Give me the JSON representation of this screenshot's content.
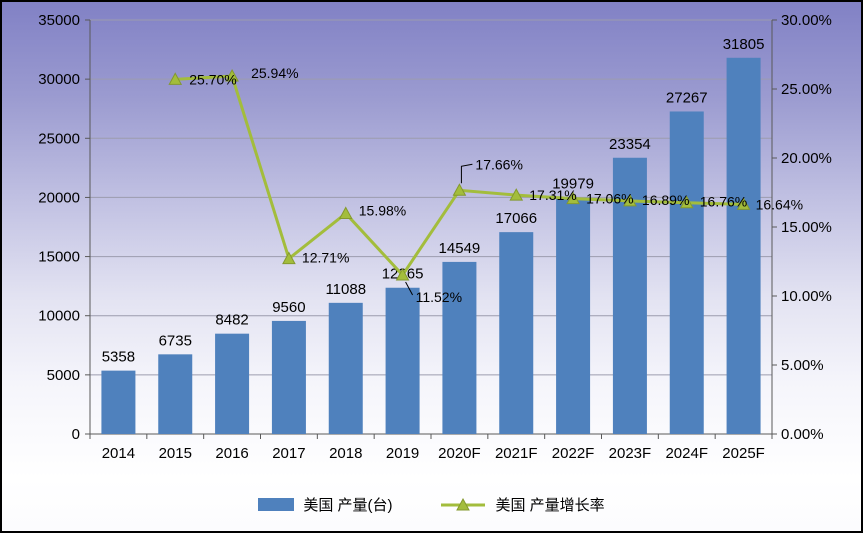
{
  "chart_data": {
    "type": "bar",
    "combo": "bar+line",
    "title": "",
    "categories": [
      "2014",
      "2015",
      "2016",
      "2017",
      "2018",
      "2019",
      "2020F",
      "2021F",
      "2022F",
      "2023F",
      "2024F",
      "2025F"
    ],
    "series": [
      {
        "name": "美国 产量(台)",
        "type": "bar",
        "axis": "left",
        "color": "#4f81bd",
        "values": [
          5358,
          6735,
          8482,
          9560,
          11088,
          12365,
          14549,
          17066,
          19979,
          23354,
          27267,
          31805
        ],
        "labels": [
          "5358",
          "6735",
          "8482",
          "9560",
          "11088",
          "12365",
          "14549",
          "17066",
          "19979",
          "23354",
          "27267",
          "31805"
        ]
      },
      {
        "name": "美国 产量增长率",
        "type": "line",
        "axis": "right",
        "color": "#a3bd3c",
        "marker": "triangle",
        "values": [
          null,
          25.7,
          25.94,
          12.71,
          15.98,
          11.52,
          17.66,
          17.31,
          17.06,
          16.89,
          16.76,
          16.64
        ],
        "labels": [
          null,
          "25.70%",
          "25.94%",
          "12.71%",
          "15.98%",
          "11.52%",
          "17.66%",
          "17.31%",
          "17.06%",
          "16.89%",
          "16.76%",
          "16.64%"
        ]
      }
    ],
    "left_axis": {
      "min": 0,
      "max": 35000,
      "tick_labels": [
        "0",
        "5000",
        "10000",
        "15000",
        "20000",
        "25000",
        "30000",
        "35000"
      ]
    },
    "right_axis": {
      "min": 0,
      "max": 30,
      "tick_labels": [
        "0.00%",
        "5.00%",
        "10.00%",
        "15.00%",
        "20.00%",
        "25.00%",
        "30.00%"
      ]
    },
    "grid": true,
    "legend_position": "bottom"
  }
}
